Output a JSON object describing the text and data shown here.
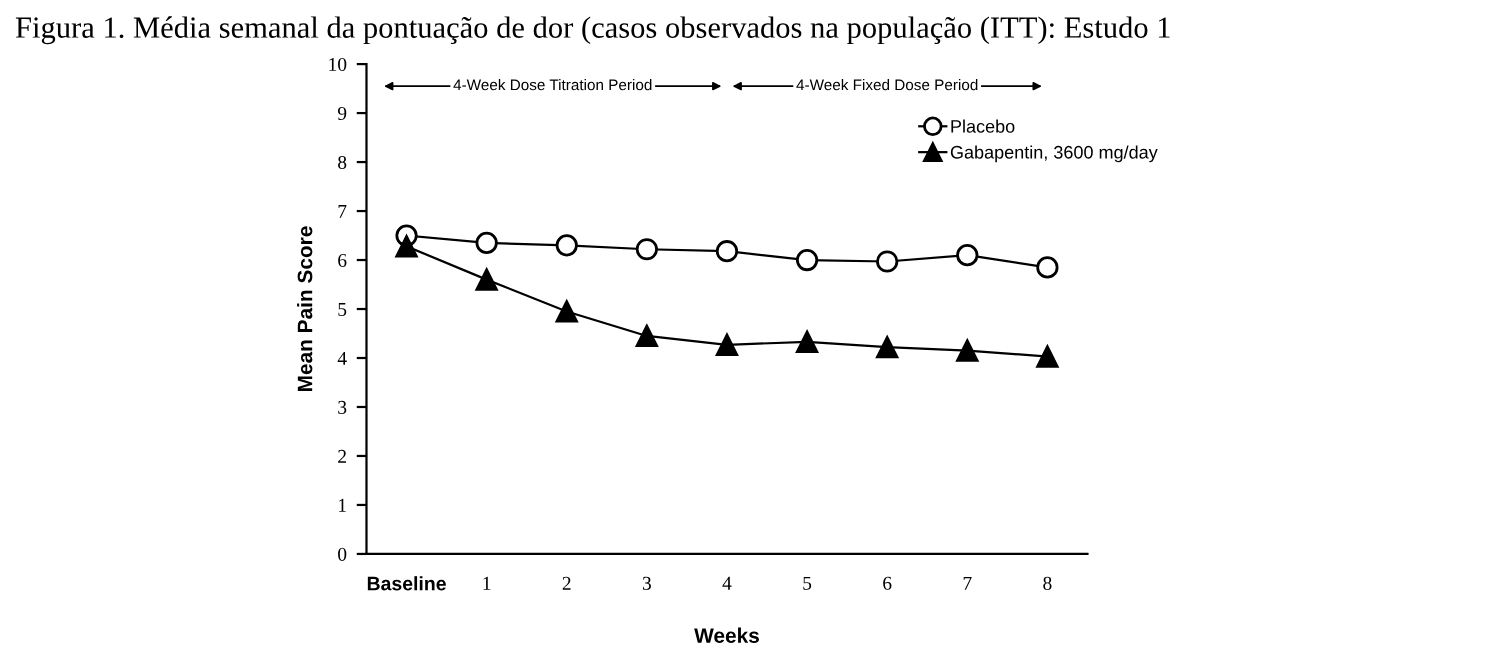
{
  "chart_data": {
    "type": "line",
    "title": "Figura 1. Média semanal da pontuação de dor (casos observados na população (ITT): Estudo 1",
    "xlabel": "Weeks",
    "ylabel": "Mean Pain Score",
    "categories": [
      "Baseline",
      "1",
      "2",
      "3",
      "4",
      "5",
      "6",
      "7",
      "8"
    ],
    "series": [
      {
        "name": "Placebo",
        "color": "#000000",
        "marker": "circle",
        "values": [
          6.5,
          6.35,
          6.3,
          6.22,
          6.18,
          6.0,
          5.97,
          6.1,
          5.85
        ]
      },
      {
        "name": "Gabapentin, 3600 mg/day",
        "color": "#000000",
        "marker": "triangle",
        "values": [
          6.28,
          5.6,
          4.95,
          4.45,
          4.27,
          4.33,
          4.22,
          4.15,
          4.03
        ]
      }
    ],
    "ylim": [
      0,
      10
    ],
    "yticks": [
      0,
      1,
      2,
      3,
      4,
      5,
      6,
      7,
      8,
      9,
      10
    ],
    "grid": false,
    "legend": "top right",
    "line_style": "solid",
    "annotations": [
      "4-Week Dose Titration Period",
      "4-Week Fixed Dose Period"
    ]
  }
}
